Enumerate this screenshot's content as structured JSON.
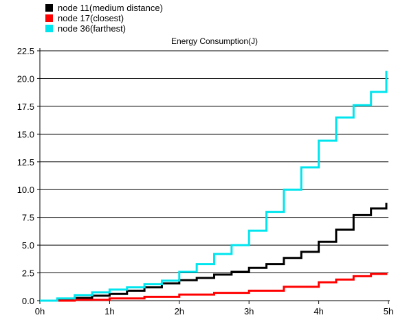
{
  "chart_data": {
    "type": "line",
    "title": "Energy Consumption(J)",
    "xlabel": "",
    "ylabel": "",
    "x_ticks": [
      0,
      1,
      2,
      3,
      4,
      5
    ],
    "x_tick_labels": [
      "0h",
      "1h",
      "2h",
      "3h",
      "4h",
      "5h"
    ],
    "y_ticks": [
      0.0,
      2.5,
      5.0,
      7.5,
      10.0,
      12.5,
      15.0,
      17.5,
      20.0,
      22.5
    ],
    "y_tick_labels": [
      "0.0",
      "2.5",
      "5.0",
      "7.5",
      "10.0",
      "12.5",
      "15.0",
      "17.5",
      "20.0",
      "22.5"
    ],
    "xlim": [
      0,
      5
    ],
    "ylim": [
      0,
      22.5
    ],
    "grid": "horizontal",
    "legend_position": "top-left",
    "series": [
      {
        "name": "node 11(medium distance)",
        "color": "#000000",
        "x": [
          0,
          0.25,
          0.5,
          0.75,
          1.0,
          1.25,
          1.5,
          1.75,
          2.0,
          2.25,
          2.5,
          2.75,
          3.0,
          3.25,
          3.5,
          3.75,
          4.0,
          4.25,
          4.5,
          4.75,
          4.97
        ],
        "y": [
          0,
          0.1,
          0.25,
          0.45,
          0.6,
          0.9,
          1.2,
          1.55,
          1.85,
          2.05,
          2.35,
          2.6,
          2.95,
          3.3,
          3.85,
          4.4,
          5.3,
          6.4,
          7.7,
          8.3,
          8.8
        ]
      },
      {
        "name": "node 17(closest)",
        "color": "#ff0000",
        "x": [
          0,
          0.5,
          1.0,
          1.5,
          2.0,
          2.5,
          3.0,
          3.5,
          4.0,
          4.25,
          4.5,
          4.75,
          4.97
        ],
        "y": [
          0,
          0.08,
          0.2,
          0.35,
          0.55,
          0.7,
          0.9,
          1.25,
          1.65,
          1.9,
          2.2,
          2.4,
          2.5
        ]
      },
      {
        "name": "node 36(farthest)",
        "color": "#00e5ee",
        "x": [
          0,
          0.25,
          0.5,
          0.75,
          1.0,
          1.25,
          1.5,
          1.75,
          2.0,
          2.25,
          2.5,
          2.75,
          3.0,
          3.25,
          3.5,
          3.75,
          4.0,
          4.25,
          4.5,
          4.75,
          4.97
        ],
        "y": [
          0,
          0.2,
          0.5,
          0.75,
          1.0,
          1.2,
          1.5,
          1.8,
          2.6,
          3.3,
          4.2,
          5.0,
          6.3,
          8.0,
          10.0,
          12.0,
          14.4,
          16.5,
          17.6,
          18.8,
          20.7
        ]
      }
    ]
  }
}
